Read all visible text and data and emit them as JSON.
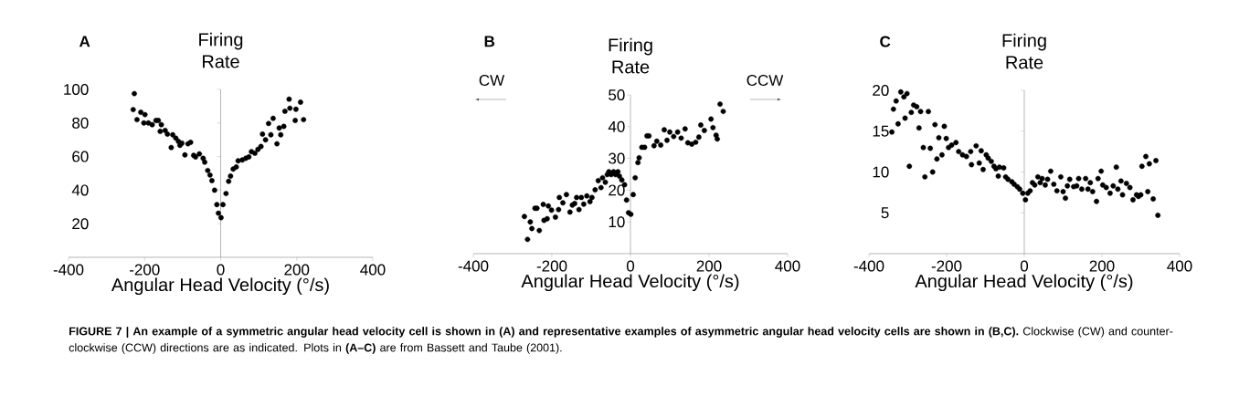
{
  "chart_data": [
    {
      "type": "scatter",
      "ylabel": "Firing Rate",
      "xlabel": "Angular Head Velocity (°/s)",
      "annotations": [
        "A"
      ],
      "color": "#000000",
      "marker": "circle",
      "xlim": [
        -400,
        400
      ],
      "xticks": [
        -400,
        -200,
        0,
        200,
        400
      ],
      "ylim": [
        0,
        100
      ],
      "yticks": [
        20,
        40,
        60,
        80,
        100
      ],
      "x": [
        -227,
        -230,
        -220,
        -210,
        -199,
        -202,
        -190,
        -180,
        -170,
        -164,
        -156,
        -159,
        -146,
        -140,
        -130,
        -126,
        -118,
        -111,
        -107,
        -102,
        -94,
        -86,
        -79,
        -71,
        -66,
        -56,
        -46,
        -42,
        -34,
        -28,
        -23,
        -16,
        -10,
        -6,
        1,
        6,
        14,
        21,
        26,
        33,
        41,
        46,
        57,
        66,
        74,
        81,
        90,
        98,
        106,
        110,
        118,
        126,
        132,
        138,
        148,
        154,
        158,
        166,
        169,
        180,
        182,
        198,
        196,
        210,
        218
      ],
      "values": [
        97.5,
        88,
        82,
        86.4,
        85,
        80,
        80,
        79,
        81.5,
        81.5,
        79,
        75,
        75.6,
        73.4,
        65.4,
        73,
        71,
        69,
        66.7,
        68,
        61,
        67.6,
        68.5,
        60.7,
        59.8,
        61.6,
        59,
        56.7,
        51.7,
        49,
        45.7,
        40,
        31.4,
        26.3,
        23.6,
        31.4,
        38,
        45.3,
        48.4,
        52.6,
        53.8,
        57.5,
        58,
        59,
        59.8,
        62.9,
        62,
        64.3,
        66,
        73.4,
        70,
        79.7,
        73,
        82.8,
        67.6,
        77,
        73,
        78,
        87,
        94.2,
        88.8,
        88.2,
        81.5,
        92.4,
        82
      ]
    },
    {
      "type": "scatter",
      "ylabel": "Firing Rate",
      "xlabel": "Angular Head Velocity (°/s)",
      "annotations": [
        "B",
        "CW",
        "CCW"
      ],
      "color": "#000000",
      "marker": "circle",
      "xlim": [
        -400,
        400
      ],
      "xticks": [
        -400,
        -200,
        0,
        200,
        400
      ],
      "ylim": [
        0,
        50
      ],
      "yticks": [
        10,
        20,
        30,
        40,
        50
      ],
      "x": [
        -270,
        -262,
        -255,
        -251,
        -243,
        -238,
        -232,
        -222,
        -220,
        -212,
        -209,
        -201,
        -191,
        -183,
        -181,
        -172,
        -163,
        -154,
        -148,
        -142,
        -137,
        -131,
        -125,
        -119,
        -111,
        -103,
        -98,
        -90,
        -82,
        -75,
        -71,
        -64,
        -59,
        -55,
        -49,
        -43,
        -38,
        -32,
        -28,
        -22,
        -15,
        -10,
        -5,
        1,
        7,
        12,
        19,
        22,
        29,
        36,
        42,
        47,
        60,
        67,
        77,
        86,
        93,
        100,
        110,
        120,
        129,
        139,
        146,
        156,
        166,
        174,
        179,
        188,
        205,
        210,
        218,
        221,
        228,
        236
      ],
      "values": [
        11.7,
        4.5,
        10,
        7.9,
        14.3,
        14.3,
        7.3,
        15.5,
        10.5,
        11,
        15,
        13.7,
        11.5,
        13.9,
        17.7,
        16,
        18.6,
        13.1,
        15.3,
        15.8,
        17.7,
        13.9,
        17.7,
        15.6,
        18.2,
        16.4,
        17.7,
        20.1,
        23,
        20.8,
        23.9,
        22.5,
        24.9,
        25.8,
        24.9,
        25.8,
        24.9,
        25.8,
        24.4,
        23.2,
        21.7,
        16.9,
        12.9,
        12.4,
        18.6,
        23.9,
        28.7,
        30.2,
        33.5,
        33.5,
        37.1,
        37.1,
        34,
        35.4,
        34.2,
        39,
        35.7,
        38.3,
        36.9,
        38.3,
        36.4,
        39.3,
        34.9,
        34.5,
        35.1,
        36.7,
        40.5,
        38.8,
        42.4,
        39.7,
        37.3,
        36.1,
        47.1,
        44.8
      ]
    },
    {
      "type": "scatter",
      "ylabel": "Firing Rate",
      "xlabel": "Angular Head Velocity (°/s)",
      "annotations": [
        "C",
        "**FIGURE 7 | An example of a symmetric angular head velocity cell is shown in (A) and representative examples of asymmetric angular head velocity cells are shown in (B,C).** Clockwise (CW) and counter-clockwise (CCW) directions are as indicated. Plots in **(A–C)** are from Bassett and Taube (2001)."
      ],
      "color": "#000000",
      "marker": "circle",
      "xlim": [
        -400,
        400
      ],
      "xticks": [
        -400,
        -200,
        0,
        200,
        400
      ],
      "ylim": [
        0,
        20
      ],
      "yticks": [
        5,
        10,
        15,
        20
      ],
      "x": [
        -341,
        -337,
        -330,
        -325,
        -318,
        -310,
        -307,
        -302,
        -296,
        -291,
        -285,
        -277,
        -271,
        -267,
        -260,
        -256,
        -247,
        -242,
        -236,
        -230,
        -225,
        -220,
        -212,
        -206,
        -201,
        -195,
        -187,
        -176,
        -169,
        -159,
        -149,
        -138,
        -136,
        -124,
        -116,
        -111,
        -106,
        -98,
        -93,
        -85,
        -78,
        -73,
        -67,
        -64,
        -53,
        -48,
        -42,
        -32,
        -26,
        -18,
        -12,
        -4,
        3,
        9,
        15,
        21,
        27,
        35,
        41,
        46,
        54,
        60,
        68,
        76,
        84,
        94,
        100,
        106,
        111,
        117,
        127,
        135,
        140,
        148,
        158,
        164,
        170,
        176,
        186,
        190,
        198,
        202,
        211,
        221,
        229,
        237,
        241,
        249,
        253,
        263,
        272,
        280,
        289,
        294,
        300,
        303,
        313,
        318,
        322,
        332,
        339,
        344
      ],
      "values": [
        14.9,
        17.7,
        18.7,
        15.9,
        19.8,
        19.2,
        16.6,
        19.6,
        10.7,
        17.3,
        18.2,
        18,
        15.4,
        17.4,
        13,
        9.4,
        17.4,
        12.9,
        10,
        15.8,
        11.6,
        14.2,
        12.1,
        15.6,
        14.1,
        13,
        13.3,
        13.6,
        12.5,
        12.1,
        11.9,
        12.5,
        10.9,
        13.2,
        11.1,
        12.6,
        10.3,
        12.1,
        11.7,
        11.3,
        10.7,
        10.4,
        9.5,
        10.6,
        10.5,
        9.4,
        9.1,
        8.8,
        8.5,
        8.2,
        7.9,
        7.4,
        6.6,
        7.4,
        7.7,
        8.7,
        8.4,
        9.4,
        8.7,
        9.2,
        8.4,
        9.1,
        10.1,
        8.5,
        7.7,
        9.4,
        7.6,
        6.8,
        8.3,
        9.1,
        8.2,
        8.3,
        9.2,
        7.9,
        9.2,
        7.9,
        8.7,
        7.6,
        6.4,
        9.2,
        10.1,
        8.4,
        8.1,
        7.4,
        8.3,
        10.6,
        7.9,
        8.9,
        7.2,
        8.6,
        8.1,
        6.6,
        7.2,
        7.0,
        7.2,
        10.7,
        11.9,
        7.6,
        11,
        6.7,
        11.4,
        4.7
      ]
    }
  ]
}
